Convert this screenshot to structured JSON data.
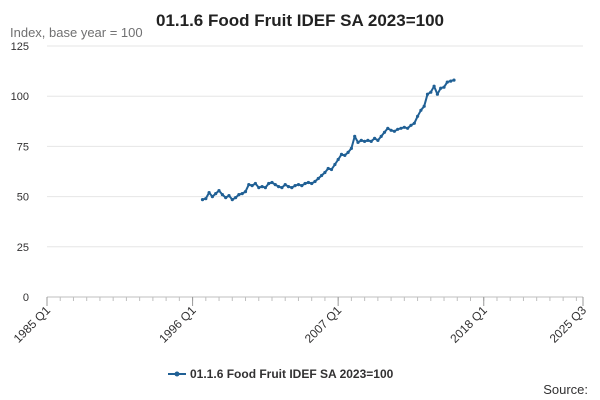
{
  "chart_data": {
    "type": "line",
    "title": "01.1.6 Food Fruit IDEF SA 2023=100",
    "ylabel": "Index, base year = 100",
    "xlabel": "",
    "ylim": [
      0,
      125
    ],
    "yticks": [
      0,
      25,
      50,
      75,
      100,
      125
    ],
    "xlim": [
      "1985 Q1",
      "2025 Q3"
    ],
    "xticks": [
      "1985 Q1",
      "1996 Q1",
      "2007 Q1",
      "2018 Q1",
      "2025 Q3"
    ],
    "grid": true,
    "legend_position": "bottom",
    "series": [
      {
        "name": "01.1.6 Food Fruit IDEF SA 2023=100",
        "color": "#206095",
        "points": [
          [
            "1996 Q4",
            48.5
          ],
          [
            "1997 Q1",
            49.0
          ],
          [
            "1997 Q2",
            52.0
          ],
          [
            "1997 Q3",
            50.0
          ],
          [
            "1997 Q4",
            51.5
          ],
          [
            "1998 Q1",
            53.0
          ],
          [
            "1998 Q2",
            51.0
          ],
          [
            "1998 Q3",
            49.5
          ],
          [
            "1998 Q4",
            50.5
          ],
          [
            "1999 Q1",
            48.5
          ],
          [
            "1999 Q2",
            49.5
          ],
          [
            "1999 Q3",
            51.0
          ],
          [
            "1999 Q4",
            51.5
          ],
          [
            "2000 Q1",
            52.5
          ],
          [
            "2000 Q2",
            56.0
          ],
          [
            "2000 Q3",
            55.5
          ],
          [
            "2000 Q4",
            56.5
          ],
          [
            "2001 Q1",
            54.5
          ],
          [
            "2001 Q2",
            55.0
          ],
          [
            "2001 Q3",
            54.5
          ],
          [
            "2001 Q4",
            56.5
          ],
          [
            "2002 Q1",
            57.0
          ],
          [
            "2002 Q2",
            56.0
          ],
          [
            "2002 Q3",
            55.0
          ],
          [
            "2002 Q4",
            54.5
          ],
          [
            "2003 Q1",
            56.0
          ],
          [
            "2003 Q2",
            55.0
          ],
          [
            "2003 Q3",
            54.5
          ],
          [
            "2003 Q4",
            55.5
          ],
          [
            "2004 Q1",
            56.0
          ],
          [
            "2004 Q2",
            55.5
          ],
          [
            "2004 Q3",
            56.5
          ],
          [
            "2004 Q4",
            57.0
          ],
          [
            "2005 Q1",
            56.5
          ],
          [
            "2005 Q2",
            57.5
          ],
          [
            "2005 Q3",
            59.0
          ],
          [
            "2005 Q4",
            60.5
          ],
          [
            "2006 Q1",
            62.0
          ],
          [
            "2006 Q2",
            64.0
          ],
          [
            "2006 Q3",
            63.5
          ],
          [
            "2006 Q4",
            66.0
          ],
          [
            "2007 Q1",
            68.5
          ],
          [
            "2007 Q2",
            71.0
          ],
          [
            "2007 Q3",
            70.5
          ],
          [
            "2007 Q4",
            72.0
          ],
          [
            "2008 Q1",
            74.0
          ],
          [
            "2008 Q2",
            80.0
          ],
          [
            "2008 Q3",
            77.0
          ],
          [
            "2008 Q4",
            78.0
          ],
          [
            "2009 Q1",
            77.5
          ],
          [
            "2009 Q2",
            78.0
          ],
          [
            "2009 Q3",
            77.5
          ],
          [
            "2009 Q4",
            79.0
          ],
          [
            "2010 Q1",
            78.0
          ],
          [
            "2010 Q2",
            80.0
          ],
          [
            "2010 Q3",
            82.0
          ],
          [
            "2010 Q4",
            84.0
          ],
          [
            "2011 Q1",
            83.0
          ],
          [
            "2011 Q2",
            82.5
          ],
          [
            "2011 Q3",
            83.5
          ],
          [
            "2011 Q4",
            84.0
          ],
          [
            "2012 Q1",
            84.5
          ],
          [
            "2012 Q2",
            84.0
          ],
          [
            "2012 Q3",
            85.5
          ],
          [
            "2012 Q4",
            86.5
          ],
          [
            "2013 Q1",
            90.0
          ],
          [
            "2013 Q2",
            93.0
          ],
          [
            "2013 Q3",
            95.0
          ],
          [
            "2013 Q4",
            101.0
          ],
          [
            "2014 Q1",
            102.0
          ],
          [
            "2014 Q2",
            105.0
          ],
          [
            "2014 Q3",
            101.0
          ],
          [
            "2014 Q4",
            104.0
          ],
          [
            "2015 Q1",
            104.5
          ],
          [
            "2015 Q2",
            107.0
          ],
          [
            "2015 Q3",
            107.5
          ],
          [
            "2015 Q4",
            108.0
          ]
        ]
      }
    ],
    "source_label": "Source:"
  }
}
